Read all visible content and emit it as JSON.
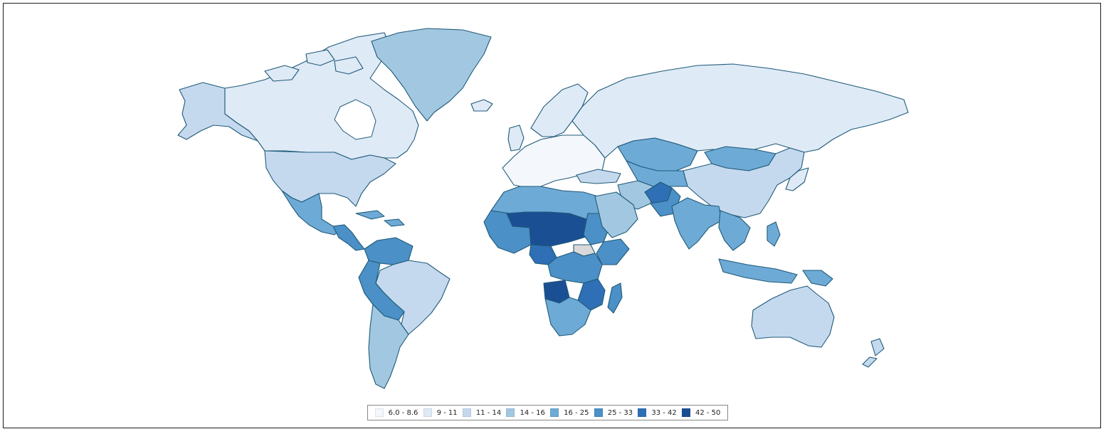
{
  "colors": {
    "c1": "#f4f7fc",
    "c2": "#dfeaf7",
    "c3": "#c5d9ee",
    "c4": "#a2c8e1",
    "c5": "#6eaad6",
    "c6": "#4b90c6",
    "c7": "#2f6fb5",
    "c8": "#1b4f94",
    "nodata": "#d9d9d9"
  },
  "legend": {
    "items": [
      {
        "label": "6.0 - 8.6",
        "color": "#f4f7fc"
      },
      {
        "label": "9 - 11",
        "color": "#dfeaf7"
      },
      {
        "label": "11 - 14",
        "color": "#c5d9ee"
      },
      {
        "label": "14 - 16",
        "color": "#a2c8e1"
      },
      {
        "label": "16 - 25",
        "color": "#6eaad6"
      },
      {
        "label": "25 - 33",
        "color": "#4b90c6"
      },
      {
        "label": "33 - 42",
        "color": "#2f6fb5"
      },
      {
        "label": "42 - 50",
        "color": "#1b4f94"
      }
    ]
  }
}
